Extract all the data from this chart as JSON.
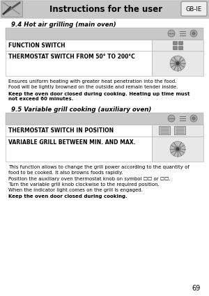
{
  "title": "Instructions for the user",
  "page_number": "69",
  "gb_ie_label": "GB-IE",
  "bg_color": "#ffffff",
  "header_bg": "#c8c8c8",
  "header_text_color": "#000000",
  "section1_title": "9.4 Hot air grilling (main oven)",
  "row1_gray_bg": "#c8c8c8",
  "row2_label": "FUNCTION SWITCH",
  "row3_label": "THERMOSTAT SWITCH FROM 50° TO 200°C",
  "section1_body1": "Ensures uniform heating with greater heat penetration into the food.",
  "section1_body2": "Food will be lightly browned on the outside and remain tender inside.",
  "section1_bold": "Keep the oven door closed during cooking. Heating up time must\nnot exceed 60 minutes.",
  "section2_title": "9.5 Variable grill cooking (auxiliary oven)",
  "row5_label": "THERMOSTAT SWITCH IN POSITION",
  "row6_label": "VARIABLE GRILL BETWEEN MIN. AND MAX.",
  "section2_body1": "This function allows to change the grill power according to the quantity of",
  "section2_body2": "food to be cooked. It also browns foods rapidly.",
  "section2_body3": "Position the auxiliary oven thermostat knob on symbol ☐☐ or ☐☐.",
  "section2_body4": "Turn the variable grill knob clockwise to the required position.",
  "section2_body5": "When the indicator light comes on the grill is engaged.",
  "section2_bold": "Keep the oven door closed during cooking.",
  "label_bg": "#ffffff",
  "icon_cell_bg": "#e8e8e8"
}
